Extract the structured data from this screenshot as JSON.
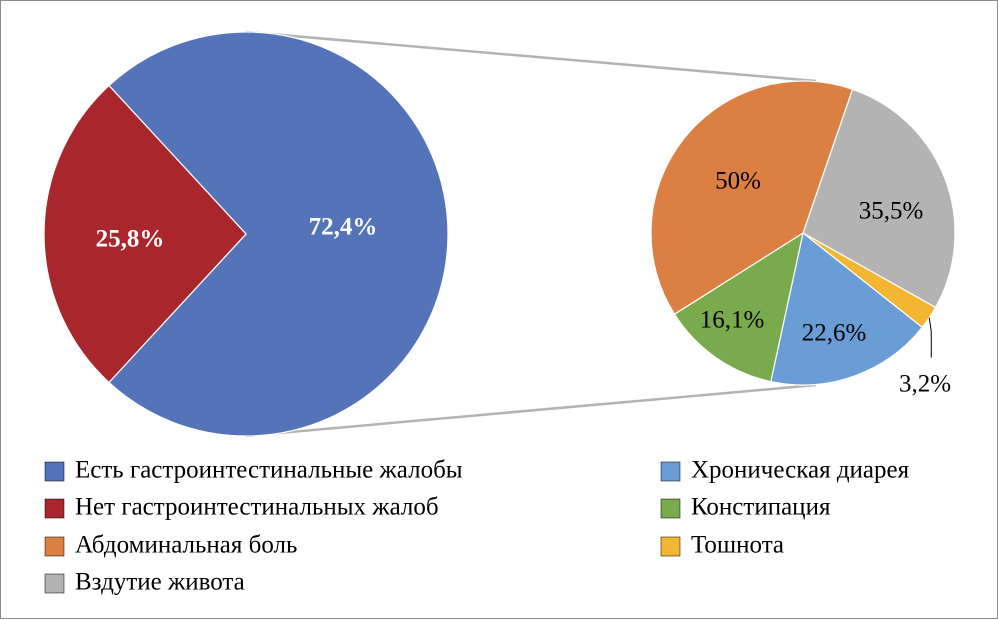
{
  "chart_data": [
    {
      "type": "pie",
      "slices": [
        {
          "name": "Есть гастроинтестинальные жалобы",
          "value": 72.4,
          "label": "72,4%",
          "color": "#5573b8",
          "label_color": "#ffffff",
          "label_bold": true
        },
        {
          "name": "Нет гастроинтестинальных жалоб",
          "value": 25.8,
          "label": "25,8%",
          "color": "#a8262c",
          "label_color": "#ffffff",
          "label_bold": true
        }
      ]
    },
    {
      "type": "pie",
      "slices": [
        {
          "name": "Абдоминальная боль",
          "value": 50,
          "label": "50%",
          "color": "#db7f42",
          "label_color": "#000000"
        },
        {
          "name": "Вздутие живота",
          "value": 35.5,
          "label": "35,5%",
          "color": "#b3b3b3",
          "label_color": "#000000"
        },
        {
          "name": "Тошнота",
          "value": 3.2,
          "label": "3,2%",
          "color": "#f2b632",
          "label_color": "#000000"
        },
        {
          "name": "Хроническая диарея",
          "value": 22.6,
          "label": "22,6%",
          "color": "#6a9cd6",
          "label_color": "#000000"
        },
        {
          "name": "Констипация",
          "value": 16.1,
          "label": "16,1%",
          "color": "#79aa4b",
          "label_color": "#000000"
        }
      ]
    }
  ],
  "legend": {
    "position": "bottom",
    "items": [
      {
        "label": "Есть гастроинтестинальные жалобы",
        "color": "#5573b8"
      },
      {
        "label": "Хроническая диарея",
        "color": "#6a9cd6"
      },
      {
        "label": "Нет гастроинтестинальных жалоб",
        "color": "#a8262c"
      },
      {
        "label": "Констипация",
        "color": "#79aa4b"
      },
      {
        "label": "Абдоминальная боль",
        "color": "#db7f42"
      },
      {
        "label": "Тошнота",
        "color": "#f2b632"
      },
      {
        "label": "Вздутие живота",
        "color": "#b3b3b3"
      }
    ]
  },
  "colors": {
    "connector": "#b3b3b3",
    "slice_border": "#ffffff",
    "frame": "#8a8a8a"
  }
}
